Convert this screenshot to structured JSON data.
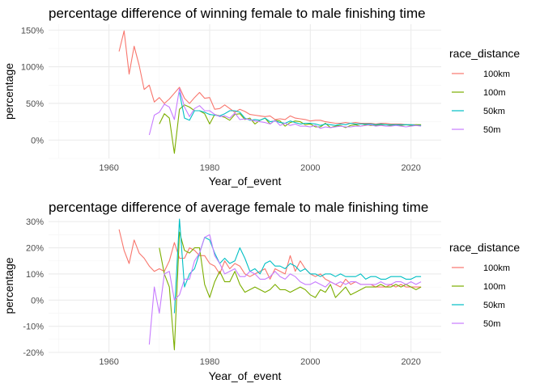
{
  "colors": {
    "100km": "#F8766D",
    "100m": "#7CAE00",
    "50km": "#00BFC4",
    "50m": "#C77CFF",
    "grid_major": "#ebebeb",
    "grid_minor": "#f4f4f4"
  },
  "chart_data": [
    {
      "type": "line",
      "title": "percentage difference of winning female to male finishing time",
      "xlabel": "Year_of_event",
      "ylabel": "percentage",
      "xlim": [
        1948,
        2026
      ],
      "ylim": [
        -0.25,
        1.58
      ],
      "x_ticks": [
        1960,
        1980,
        2000,
        2020
      ],
      "x_tick_labels": [
        "1960",
        "1980",
        "2000",
        "2020"
      ],
      "y_ticks": [
        0,
        0.5,
        1.0,
        1.5
      ],
      "y_tick_labels": [
        "0%",
        "50%",
        "100%",
        "150%"
      ],
      "grid": true,
      "legend": {
        "title": "race_distance",
        "position": "right",
        "entries": [
          "100km",
          "100m",
          "50km",
          "50m"
        ]
      },
      "series": [
        {
          "name": "100km",
          "x": [
            1962,
            1963,
            1964,
            1965,
            1966,
            1967,
            1968,
            1969,
            1970,
            1971,
            1972,
            1973,
            1974,
            1975,
            1976,
            1977,
            1978,
            1979,
            1980,
            1981,
            1982,
            1983,
            1984,
            1985,
            1986,
            1987,
            1988,
            1989,
            1990,
            1991,
            1992,
            1993,
            1994,
            1995,
            1996,
            1997,
            1998,
            1999,
            2000,
            2001,
            2002,
            2003,
            2004,
            2005,
            2006,
            2007,
            2008,
            2009,
            2010,
            2011,
            2012,
            2013,
            2014,
            2015,
            2016,
            2017,
            2018,
            2019,
            2020,
            2021,
            2022
          ],
          "y": [
            1.21,
            1.49,
            0.9,
            1.28,
            1.02,
            0.69,
            0.75,
            0.52,
            0.58,
            0.5,
            0.56,
            0.64,
            0.72,
            0.57,
            0.5,
            0.58,
            0.65,
            0.57,
            0.58,
            0.42,
            0.43,
            0.48,
            0.43,
            0.38,
            0.42,
            0.39,
            0.35,
            0.34,
            0.33,
            0.32,
            0.33,
            0.28,
            0.29,
            0.28,
            0.33,
            0.3,
            0.29,
            0.28,
            0.26,
            0.27,
            0.27,
            0.25,
            0.24,
            0.23,
            0.23,
            0.24,
            0.23,
            0.24,
            0.23,
            0.23,
            0.23,
            0.22,
            0.23,
            0.23,
            0.22,
            0.22,
            0.22,
            0.21,
            0.21,
            0.21,
            0.2
          ]
        },
        {
          "name": "100m",
          "x": [
            1970,
            1971,
            1972,
            1973,
            1974,
            1975,
            1976,
            1977,
            1978,
            1979,
            1980,
            1981,
            1982,
            1983,
            1984,
            1985,
            1986,
            1987,
            1988,
            1989,
            1990,
            1991,
            1992,
            1993,
            1994,
            1995,
            1996,
            1997,
            1998,
            1999,
            2000,
            2001,
            2002,
            2003,
            2004,
            2005,
            2006,
            2007,
            2008,
            2009,
            2010,
            2011,
            2012,
            2013,
            2014,
            2015,
            2016,
            2017,
            2018,
            2019,
            2020,
            2021,
            2022
          ],
          "y": [
            0.22,
            0.36,
            0.3,
            -0.18,
            0.42,
            0.48,
            0.45,
            0.4,
            0.4,
            0.36,
            0.22,
            0.35,
            0.33,
            0.31,
            0.27,
            0.35,
            0.36,
            0.28,
            0.3,
            0.22,
            0.27,
            0.3,
            0.22,
            0.27,
            0.26,
            0.19,
            0.24,
            0.26,
            0.25,
            0.21,
            0.22,
            0.18,
            0.18,
            0.23,
            0.17,
            0.19,
            0.2,
            0.17,
            0.2,
            0.21,
            0.19,
            0.21,
            0.2,
            0.2,
            0.21,
            0.21,
            0.2,
            0.21,
            0.2,
            0.21,
            0.2,
            0.21,
            0.21
          ]
        },
        {
          "name": "50km",
          "x": [
            1974,
            1975,
            1976,
            1977,
            1978,
            1979,
            1980,
            1981,
            1982,
            1983,
            1984,
            1985,
            1986,
            1987,
            1988,
            1989,
            1990,
            1991,
            1992,
            1993,
            1994,
            1995,
            1996,
            1997,
            1998,
            1999,
            2000,
            2001,
            2002,
            2003,
            2004,
            2005,
            2006,
            2007,
            2008,
            2009,
            2010,
            2011,
            2012,
            2013,
            2014,
            2015,
            2016,
            2017,
            2018,
            2019,
            2020,
            2021,
            2022
          ],
          "y": [
            0.65,
            0.3,
            0.27,
            0.4,
            0.4,
            0.38,
            0.35,
            0.34,
            0.33,
            0.36,
            0.4,
            0.4,
            0.38,
            0.3,
            0.27,
            0.28,
            0.27,
            0.3,
            0.25,
            0.26,
            0.24,
            0.23,
            0.26,
            0.24,
            0.22,
            0.23,
            0.23,
            0.22,
            0.2,
            0.22,
            0.21,
            0.2,
            0.22,
            0.21,
            0.23,
            0.22,
            0.22,
            0.22,
            0.22,
            0.21,
            0.22,
            0.21,
            0.21,
            0.21,
            0.21,
            0.21,
            0.21,
            0.2,
            0.2
          ]
        },
        {
          "name": "50m",
          "x": [
            1968,
            1969,
            1970,
            1971,
            1972,
            1973,
            1974,
            1975,
            1976,
            1977,
            1978,
            1979,
            1980,
            1981,
            1982,
            1983,
            1984,
            1985,
            1986,
            1987,
            1988,
            1989,
            1990,
            1991,
            1992,
            1993,
            1994,
            1995,
            1996,
            1997,
            1998,
            1999,
            2000,
            2001,
            2002,
            2003,
            2004,
            2005,
            2006,
            2007,
            2008,
            2009,
            2010,
            2011,
            2012,
            2013,
            2014,
            2015,
            2016,
            2017,
            2018,
            2019,
            2020,
            2021,
            2022
          ],
          "y": [
            0.07,
            0.34,
            0.38,
            0.49,
            0.45,
            0.28,
            0.7,
            0.45,
            0.32,
            0.43,
            0.47,
            0.4,
            0.4,
            0.35,
            0.32,
            0.33,
            0.3,
            0.37,
            0.28,
            0.29,
            0.28,
            0.26,
            0.25,
            0.24,
            0.22,
            0.27,
            0.2,
            0.23,
            0.2,
            0.22,
            0.19,
            0.19,
            0.18,
            0.2,
            0.16,
            0.18,
            0.17,
            0.18,
            0.19,
            0.18,
            0.18,
            0.19,
            0.19,
            0.2,
            0.21,
            0.19,
            0.2,
            0.19,
            0.19,
            0.2,
            0.19,
            0.18,
            0.19,
            0.2,
            0.19
          ]
        }
      ]
    },
    {
      "type": "line",
      "title": "percentage difference of average female to male finishing time",
      "xlabel": "Year_of_event",
      "ylabel": "percentage",
      "xlim": [
        1948,
        2026
      ],
      "ylim": [
        -0.2,
        0.31
      ],
      "x_ticks": [
        1960,
        1980,
        2000,
        2020
      ],
      "x_tick_labels": [
        "1960",
        "1980",
        "2000",
        "2020"
      ],
      "y_ticks": [
        -0.2,
        -0.1,
        0,
        0.1,
        0.2,
        0.3
      ],
      "y_tick_labels": [
        "-20%",
        "-10%",
        "0%",
        "10%",
        "20%",
        "30%"
      ],
      "grid": true,
      "legend": {
        "title": "race_distance",
        "position": "right",
        "entries": [
          "100km",
          "100m",
          "50km",
          "50m"
        ]
      },
      "series": [
        {
          "name": "100km",
          "x": [
            1962,
            1963,
            1964,
            1965,
            1966,
            1967,
            1968,
            1969,
            1970,
            1971,
            1972,
            1973,
            1974,
            1975,
            1976,
            1977,
            1978,
            1979,
            1980,
            1981,
            1982,
            1983,
            1984,
            1985,
            1986,
            1987,
            1988,
            1989,
            1990,
            1991,
            1992,
            1993,
            1994,
            1995,
            1996,
            1997,
            1998,
            1999,
            2000,
            2001,
            2002,
            2003,
            2004,
            2005,
            2006,
            2007,
            2008,
            2009,
            2010,
            2011,
            2012,
            2013,
            2014,
            2015,
            2016,
            2017,
            2018,
            2019,
            2020,
            2021,
            2022
          ],
          "y": [
            0.27,
            0.19,
            0.14,
            0.23,
            0.18,
            0.16,
            0.13,
            0.11,
            0.12,
            0.11,
            0.15,
            0.22,
            0.16,
            0.16,
            0.2,
            0.19,
            0.17,
            0.17,
            0.14,
            0.13,
            0.1,
            0.15,
            0.12,
            0.14,
            0.13,
            0.1,
            0.09,
            0.1,
            0.11,
            0.12,
            0.08,
            0.12,
            0.11,
            0.1,
            0.17,
            0.11,
            0.15,
            0.12,
            0.1,
            0.09,
            0.1,
            0.08,
            0.07,
            0.06,
            0.05,
            0.08,
            0.06,
            0.07,
            0.06,
            0.06,
            0.06,
            0.05,
            0.05,
            0.05,
            0.06,
            0.05,
            0.06,
            0.05,
            0.05,
            0.05,
            0.05
          ]
        },
        {
          "name": "100m",
          "x": [
            1970,
            1971,
            1972,
            1973,
            1974,
            1975,
            1976,
            1977,
            1978,
            1979,
            1980,
            1981,
            1982,
            1983,
            1984,
            1985,
            1986,
            1987,
            1988,
            1989,
            1990,
            1991,
            1992,
            1993,
            1994,
            1995,
            1996,
            1997,
            1998,
            1999,
            2000,
            2001,
            2002,
            2003,
            2004,
            2005,
            2006,
            2007,
            2008,
            2009,
            2010,
            2011,
            2012,
            2013,
            2014,
            2015,
            2016,
            2017,
            2018,
            2019,
            2020,
            2021,
            2022
          ],
          "y": [
            0.2,
            0.1,
            0.05,
            -0.19,
            0.26,
            0.19,
            0.18,
            0.2,
            0.2,
            0.06,
            0.01,
            0.07,
            0.11,
            0.07,
            0.07,
            0.11,
            0.06,
            0.03,
            0.04,
            0.05,
            0.04,
            0.03,
            0.04,
            0.06,
            0.04,
            0.04,
            0.03,
            0.04,
            0.05,
            0.04,
            0.02,
            0.01,
            0.04,
            0.03,
            0.06,
            0.01,
            0.03,
            0.05,
            0.02,
            0.03,
            0.04,
            0.05,
            0.05,
            0.05,
            0.06,
            0.05,
            0.05,
            0.06,
            0.05,
            0.06,
            0.05,
            0.04,
            0.05
          ]
        },
        {
          "name": "50km",
          "x": [
            1973,
            1974,
            1975,
            1976,
            1977,
            1978,
            1979,
            1980,
            1981,
            1982,
            1983,
            1984,
            1985,
            1986,
            1987,
            1988,
            1989,
            1990,
            1991,
            1992,
            1993,
            1994,
            1995,
            1996,
            1997,
            1998,
            1999,
            2000,
            2001,
            2002,
            2003,
            2004,
            2005,
            2006,
            2007,
            2008,
            2009,
            2010,
            2011,
            2012,
            2013,
            2014,
            2015,
            2016,
            2017,
            2018,
            2019,
            2020,
            2021,
            2022
          ],
          "y": [
            -0.05,
            0.31,
            0.05,
            0.1,
            0.12,
            0.18,
            0.24,
            0.23,
            0.18,
            0.14,
            0.16,
            0.14,
            0.15,
            0.2,
            0.16,
            0.11,
            0.12,
            0.1,
            0.14,
            0.15,
            0.13,
            0.13,
            0.12,
            0.14,
            0.13,
            0.11,
            0.12,
            0.1,
            0.1,
            0.09,
            0.1,
            0.1,
            0.09,
            0.1,
            0.09,
            0.09,
            0.09,
            0.1,
            0.08,
            0.09,
            0.09,
            0.08,
            0.08,
            0.09,
            0.09,
            0.09,
            0.08,
            0.08,
            0.09,
            0.09
          ]
        },
        {
          "name": "50m",
          "x": [
            1968,
            1969,
            1970,
            1971,
            1972,
            1973,
            1974,
            1975,
            1976,
            1977,
            1978,
            1979,
            1980,
            1981,
            1982,
            1983,
            1984,
            1985,
            1986,
            1987,
            1988,
            1989,
            1990,
            1991,
            1992,
            1993,
            1994,
            1995,
            1996,
            1997,
            1998,
            1999,
            2000,
            2001,
            2002,
            2003,
            2004,
            2005,
            2006,
            2007,
            2008,
            2009,
            2010,
            2011,
            2012,
            2013,
            2014,
            2015,
            2016,
            2017,
            2018,
            2019,
            2020,
            2021,
            2022
          ],
          "y": [
            -0.17,
            0.05,
            -0.05,
            0.1,
            0.11,
            0.0,
            0.02,
            0.08,
            0.08,
            0.15,
            0.18,
            0.24,
            0.25,
            0.17,
            0.14,
            0.1,
            0.11,
            0.12,
            0.09,
            0.09,
            0.11,
            0.1,
            0.08,
            0.08,
            0.09,
            0.11,
            0.09,
            0.08,
            0.1,
            0.09,
            0.07,
            0.06,
            0.06,
            0.07,
            0.06,
            0.05,
            0.07,
            0.06,
            0.07,
            0.06,
            0.07,
            0.07,
            0.06,
            0.06,
            0.06,
            0.06,
            0.07,
            0.06,
            0.06,
            0.07,
            0.07,
            0.06,
            0.07,
            0.06,
            0.07
          ]
        }
      ]
    }
  ]
}
